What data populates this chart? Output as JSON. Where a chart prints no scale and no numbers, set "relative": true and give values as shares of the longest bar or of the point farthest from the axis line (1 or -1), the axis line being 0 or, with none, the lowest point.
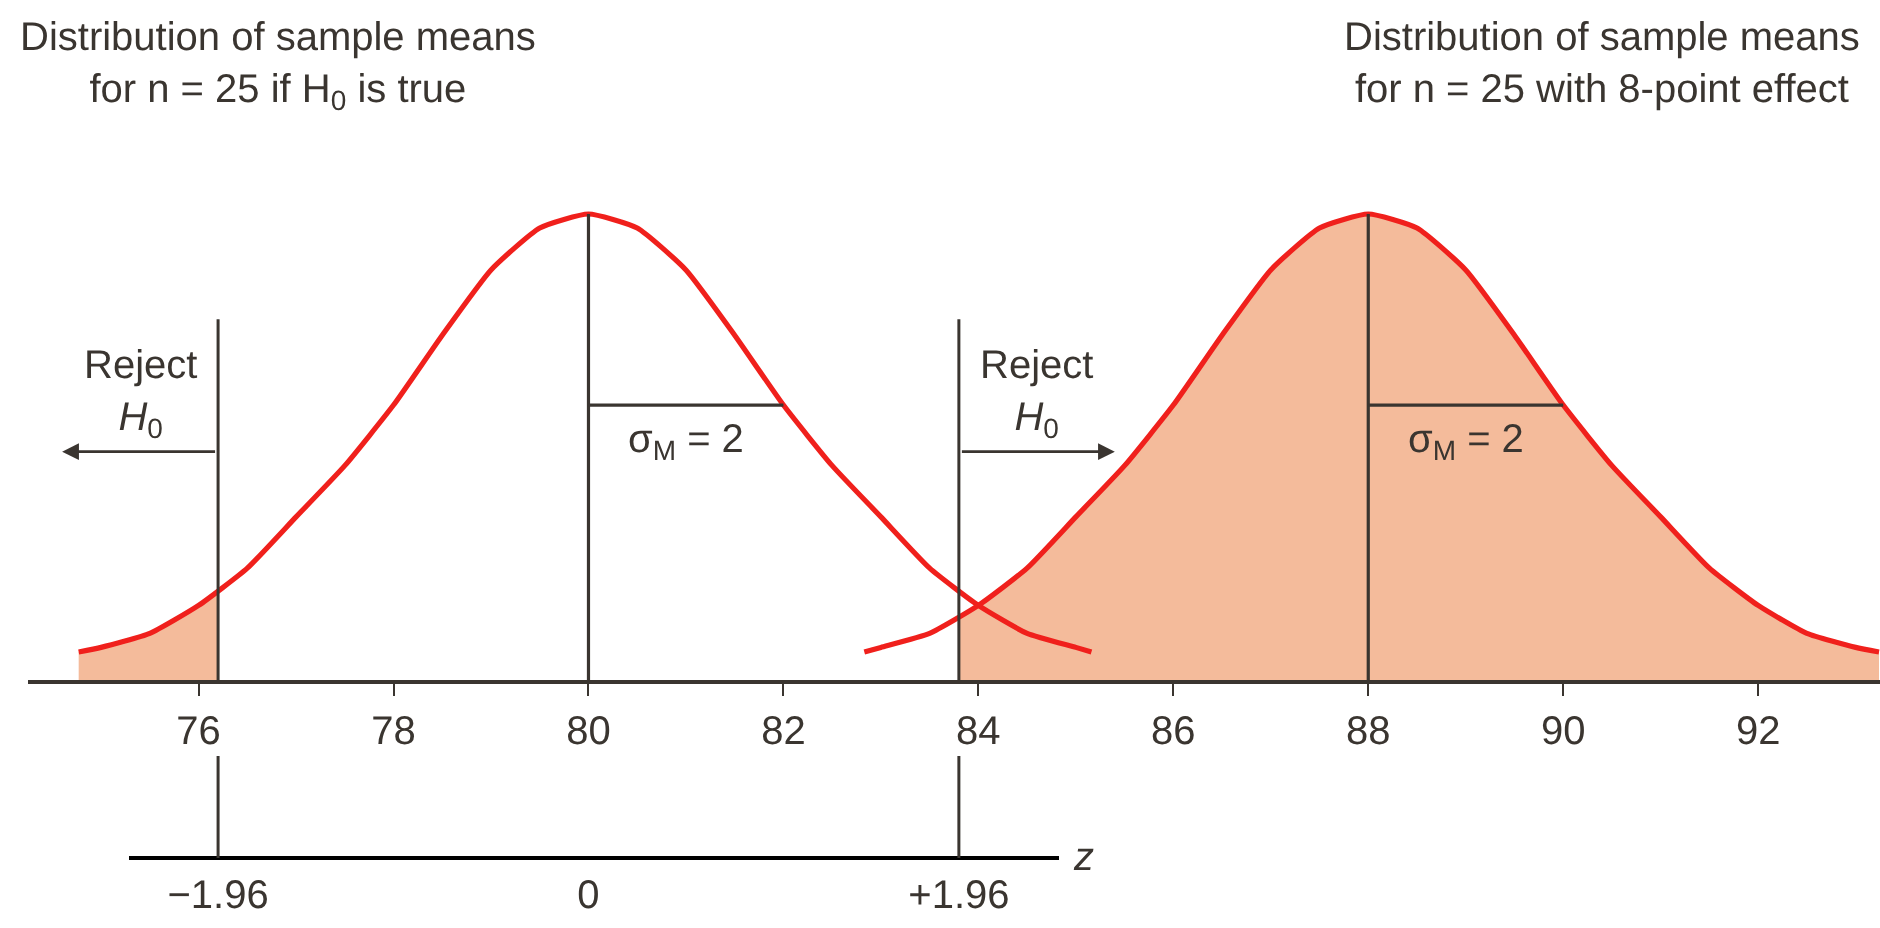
{
  "chart_data": {
    "type": "line",
    "relative": true,
    "annotations": [
      "Distribution of sample means\nfor n = 25 if H$_{0}$ is true",
      "Distribution of sample means\nfor n = 25 with 8-point effect",
      {
        "text": "σ$_{M}$ = 2",
        "x": 81,
        "y": 0.59
      },
      {
        "text": "σ$_{M}$ = 2",
        "x": 89,
        "y": 0.59
      }
    ],
    "xlim": [
      74.25,
      93.25
    ],
    "xticks": [
      76,
      78,
      80,
      82,
      84,
      86,
      88,
      90,
      92
    ],
    "x2lim": [
      -2.43,
      2.49
    ],
    "x2ticks": [
      {
        "value": -1.96,
        "label": "−1.96"
      },
      0,
      {
        "value": 1.96,
        "label": "+1.96"
      }
    ],
    "x2label": "z",
    "ref_lines": [
      {
        "axis": "x",
        "value": 76.2,
        "label": "Reject\nH$_{0}$",
        "color": "#3a3530"
      },
      {
        "axis": "x",
        "value": 83.8,
        "label": "Reject\nH$_{0}$",
        "color": "#3a3530"
      }
    ],
    "series": [
      {
        "type": "area",
        "color": "#f4bb9b",
        "x": [
          74.77,
          75,
          75.5,
          76,
          76.2
        ],
        "values": [
          0.06,
          0.07,
          0.1,
          0.16,
          0.19
        ]
      },
      {
        "type": "area",
        "color": "#f4bb9b",
        "x": [
          83.8,
          84,
          84.5,
          85,
          85.5,
          86,
          86.5,
          87,
          87.5,
          88,
          88.5,
          89,
          89.5,
          90,
          90.5,
          91,
          91.5,
          92,
          92.5,
          93,
          93.24
        ],
        "values": [
          0.14,
          0.16,
          0.24,
          0.35,
          0.46,
          0.59,
          0.74,
          0.88,
          0.97,
          1,
          0.97,
          0.88,
          0.74,
          0.59,
          0.46,
          0.35,
          0.24,
          0.16,
          0.1,
          0.07,
          0.06
        ]
      },
      {
        "color": "#f0201c",
        "x": [
          74.77,
          75,
          75.5,
          76,
          76.5,
          77,
          77.5,
          78,
          78.5,
          79,
          79.5,
          80,
          80.5,
          81,
          81.5,
          82,
          82.5,
          83,
          83.5,
          84,
          84.5,
          85,
          85.16
        ],
        "values": [
          0.06,
          0.07,
          0.1,
          0.16,
          0.24,
          0.35,
          0.46,
          0.59,
          0.74,
          0.88,
          0.97,
          1,
          0.97,
          0.88,
          0.74,
          0.59,
          0.46,
          0.35,
          0.24,
          0.16,
          0.1,
          0.07,
          0.06
        ]
      },
      {
        "color": "#f0201c",
        "x": [
          82.83,
          83,
          83.5,
          84,
          84.5,
          85,
          85.5,
          86,
          86.5,
          87,
          87.5,
          88,
          88.5,
          89,
          89.5,
          90,
          90.5,
          91,
          91.5,
          92,
          92.5,
          93,
          93.24
        ],
        "values": [
          0.06,
          0.07,
          0.1,
          0.16,
          0.24,
          0.35,
          0.46,
          0.59,
          0.74,
          0.88,
          0.97,
          1,
          0.97,
          0.88,
          0.74,
          0.59,
          0.46,
          0.35,
          0.24,
          0.16,
          0.1,
          0.07,
          0.06
        ]
      },
      {
        "color": "#3a3530",
        "x": [
          80,
          80
        ],
        "values": [
          0,
          1
        ]
      },
      {
        "color": "#3a3530",
        "x": [
          88,
          88
        ],
        "values": [
          0,
          1
        ]
      },
      {
        "color": "#3a3530",
        "x": [
          80,
          82
        ],
        "values": [
          0.59,
          0.59
        ]
      },
      {
        "color": "#3a3530",
        "x": [
          88,
          90
        ],
        "values": [
          0.59,
          0.59
        ]
      }
    ]
  }
}
